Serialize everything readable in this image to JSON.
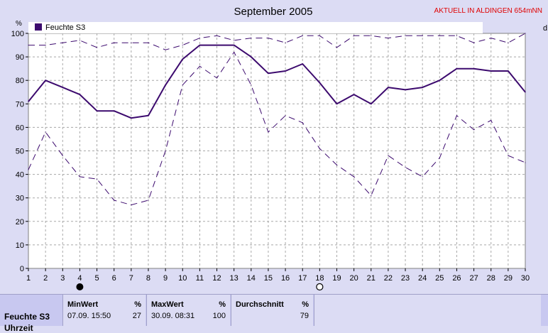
{
  "title": "September 2005",
  "alert": "AKTUELL IN ALDINGEN 654mNN",
  "legend": {
    "label": "Feuchte S3",
    "color": "#3c0a6e"
  },
  "right_edge_label": "d",
  "chart_data": {
    "type": "line",
    "ylabel": "%",
    "ylim": [
      0,
      100
    ],
    "yticks": [
      0,
      10,
      20,
      30,
      40,
      50,
      60,
      70,
      80,
      90,
      100
    ],
    "x": [
      1,
      2,
      3,
      4,
      5,
      6,
      7,
      8,
      9,
      10,
      11,
      12,
      13,
      14,
      15,
      16,
      17,
      18,
      19,
      20,
      21,
      22,
      23,
      24,
      25,
      26,
      27,
      28,
      29,
      30
    ],
    "grid": true,
    "legend_position": "top-left",
    "moon_markers": [
      {
        "day": 4,
        "phase": "new"
      },
      {
        "day": 18,
        "phase": "full"
      }
    ],
    "series": [
      {
        "name": "Feuchte S3",
        "style": "solid",
        "values": [
          71,
          80,
          77,
          74,
          67,
          67,
          64,
          65,
          78,
          89,
          95,
          95,
          95,
          90,
          83,
          84,
          87,
          79,
          70,
          74,
          70,
          77,
          76,
          77,
          80,
          85,
          85,
          84,
          84,
          75
        ]
      },
      {
        "style": "dashed",
        "values": [
          95,
          95,
          96,
          97,
          94,
          96,
          96,
          96,
          93,
          95,
          98,
          99,
          97,
          98,
          98,
          96,
          99,
          99,
          94,
          99,
          99,
          98,
          99,
          99,
          99,
          99,
          96,
          98,
          96,
          100
        ]
      },
      {
        "style": "dashed",
        "values": [
          42,
          58,
          48,
          39,
          38,
          29,
          27,
          29,
          50,
          78,
          86,
          81,
          92,
          78,
          58,
          65,
          62,
          51,
          44,
          39,
          31,
          48,
          43,
          39,
          47,
          65,
          59,
          63,
          48,
          45
        ]
      }
    ]
  },
  "stats": {
    "row_label": "Feuchte S3",
    "row_label_2": "Uhrzeit",
    "min": {
      "header": "MinWert",
      "unit": "%",
      "when": "07.09.  15:50",
      "value": "27"
    },
    "max": {
      "header": "MaxWert",
      "unit": "%",
      "when": "30.09.  08:31",
      "value": "100"
    },
    "avg": {
      "header": "Durchschnitt",
      "unit": "%",
      "value": "79"
    }
  }
}
